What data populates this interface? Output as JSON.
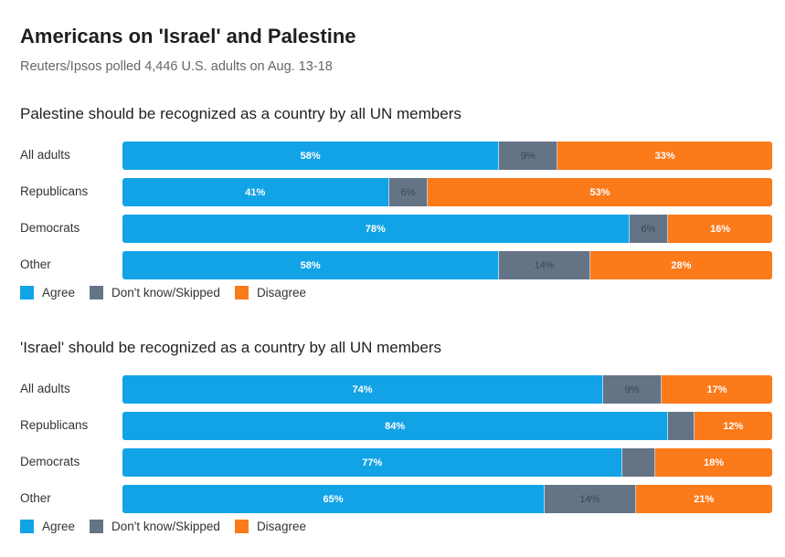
{
  "title": "Americans on 'Israel' and Palestine",
  "subtitle": "Reuters/Ipsos polled 4,446 U.S. adults on Aug. 13-18",
  "colors": {
    "agree": "#12a3e6",
    "unsure": "#657386",
    "disagree": "#fb7a1a"
  },
  "legend": {
    "agree": "Agree",
    "unsure": "Don't know/Skipped",
    "disagree": "Disagree"
  },
  "chart_data": [
    {
      "type": "bar",
      "stacked": true,
      "orientation": "horizontal",
      "title": "Palestine should be recognized as a country by all UN members",
      "categories": [
        "All adults",
        "Republicans",
        "Democrats",
        "Other"
      ],
      "series": [
        {
          "name": "Agree",
          "values": [
            58,
            41,
            78,
            58
          ],
          "labels": [
            "58%",
            "41%",
            "78%",
            "58%"
          ]
        },
        {
          "name": "Don't know/Skipped",
          "values": [
            9,
            6,
            6,
            14
          ],
          "labels": [
            "9%",
            "6%",
            "6%",
            "14%"
          ]
        },
        {
          "name": "Disagree",
          "values": [
            33,
            53,
            16,
            28
          ],
          "labels": [
            "33%",
            "53%",
            "16%",
            "28%"
          ]
        }
      ],
      "xlim": [
        0,
        100
      ]
    },
    {
      "type": "bar",
      "stacked": true,
      "orientation": "horizontal",
      "title": "'Israel' should be recognized as a country by all UN members",
      "categories": [
        "All adults",
        "Republicans",
        "Democrats",
        "Other"
      ],
      "series": [
        {
          "name": "Agree",
          "values": [
            74,
            84,
            77,
            65
          ],
          "labels": [
            "74%",
            "84%",
            "77%",
            "65%"
          ]
        },
        {
          "name": "Don't know/Skipped",
          "values": [
            9,
            4,
            5,
            14
          ],
          "labels": [
            "9%",
            "",
            "",
            "14%"
          ]
        },
        {
          "name": "Disagree",
          "values": [
            17,
            12,
            18,
            21
          ],
          "labels": [
            "17%",
            "12%",
            "18%",
            "21%"
          ]
        }
      ],
      "xlim": [
        0,
        100
      ]
    }
  ]
}
